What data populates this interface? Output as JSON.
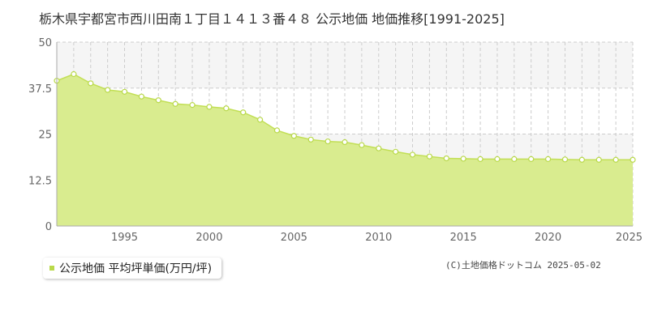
{
  "chart_data": {
    "type": "area",
    "title": "栃木県宇都宮市西川田南１丁目１４１３番４８ 公示地価 地価推移[1991-2025]",
    "xlabel": "",
    "ylabel": "",
    "x": [
      1991,
      1992,
      1993,
      1994,
      1995,
      1996,
      1997,
      1998,
      1999,
      2000,
      2001,
      2002,
      2003,
      2004,
      2005,
      2006,
      2007,
      2008,
      2009,
      2010,
      2011,
      2012,
      2013,
      2014,
      2015,
      2016,
      2017,
      2018,
      2019,
      2020,
      2021,
      2022,
      2023,
      2024,
      2025
    ],
    "xlim": [
      1991,
      2025
    ],
    "x_ticks": [
      "1995",
      "2000",
      "2005",
      "2010",
      "2015",
      "2020",
      "2025"
    ],
    "ylim": [
      0,
      50
    ],
    "y_ticks": [
      "0",
      "12.5",
      "25",
      "37.5",
      "50"
    ],
    "grid": true,
    "series": [
      {
        "name": "公示地価 平均坪単価(万円/坪)",
        "values": [
          39.5,
          41.3,
          38.8,
          37.0,
          36.5,
          35.2,
          34.2,
          33.2,
          32.9,
          32.4,
          32.0,
          30.9,
          28.9,
          26.0,
          24.5,
          23.5,
          23.0,
          22.8,
          22.0,
          21.1,
          20.2,
          19.4,
          18.9,
          18.4,
          18.3,
          18.2,
          18.2,
          18.2,
          18.2,
          18.2,
          18.1,
          18.0,
          18.0,
          18.0,
          18.0
        ]
      }
    ],
    "legend_position": "bottom-left"
  },
  "credit": "(C)土地価格ドットコム 2025-05-02",
  "colors": {
    "fill": "#d9ec8f",
    "line": "#c2df55",
    "marker_fill": "#ffffff",
    "marker_stroke": "#b9d94a",
    "legend_swatch": "#b9d94a",
    "grid": "#cccccc",
    "band": "#f5f5f5"
  }
}
